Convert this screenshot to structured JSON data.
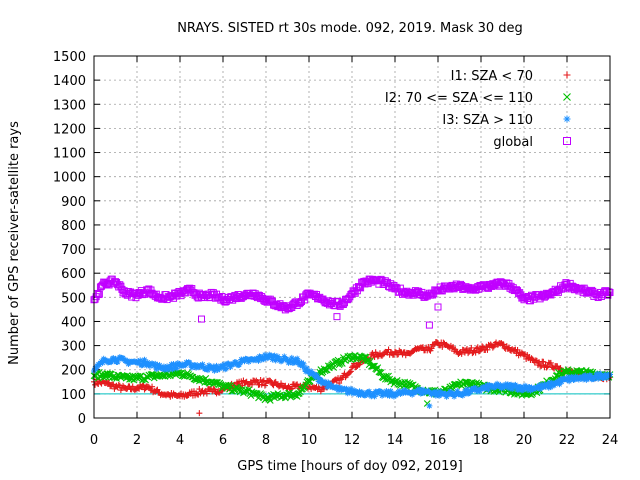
{
  "chart_data": {
    "type": "scatter",
    "title": "NRAYS. SISTED rt 30s mode. 092, 2019. Mask 30 deg",
    "xlabel": "GPS time [hours of doy 092, 2019]",
    "ylabel": "Number of GPS receiver-satellite rays",
    "xlim": [
      0,
      24
    ],
    "ylim": [
      0,
      1500
    ],
    "xticks": [
      "0",
      "2",
      "4",
      "6",
      "8",
      "10",
      "12",
      "14",
      "16",
      "18",
      "20",
      "22",
      "24"
    ],
    "yticks": [
      "0",
      "100",
      "200",
      "300",
      "400",
      "500",
      "600",
      "700",
      "800",
      "900",
      "1000",
      "1100",
      "1200",
      "1300",
      "1400",
      "1500"
    ],
    "legend_position": "top-right",
    "reference_line": {
      "y": 100,
      "color": "#00bfbf"
    },
    "series": [
      {
        "name": "I1: SZA < 70",
        "marker": "+",
        "color": "#e41a1c",
        "x": [
          0,
          0.5,
          1,
          1.5,
          2,
          2.5,
          3,
          3.5,
          4,
          4.5,
          5,
          5.5,
          6,
          6.5,
          7,
          7.5,
          8,
          8.5,
          9,
          9.5,
          10,
          10.5,
          11,
          11.5,
          12,
          12.5,
          13,
          13.5,
          14,
          14.5,
          15,
          15.5,
          16,
          16.5,
          17,
          17.5,
          18,
          18.5,
          19,
          19.5,
          20,
          20.5,
          21,
          21.5,
          22,
          22.5,
          23,
          23.5,
          24
        ],
        "y": [
          150,
          145,
          130,
          120,
          125,
          130,
          105,
          95,
          90,
          100,
          110,
          110,
          120,
          135,
          145,
          150,
          145,
          140,
          125,
          130,
          130,
          120,
          140,
          160,
          210,
          235,
          260,
          270,
          275,
          260,
          285,
          280,
          310,
          295,
          270,
          280,
          285,
          300,
          305,
          280,
          260,
          230,
          220,
          215,
          195,
          180,
          175,
          175,
          170
        ]
      },
      {
        "name": "I2: 70 <= SZA <= 110",
        "marker": "x",
        "color": "#00c000",
        "x": [
          0,
          0.5,
          1,
          1.5,
          2,
          2.5,
          3,
          3.5,
          4,
          4.5,
          5,
          5.5,
          6,
          6.5,
          7,
          7.5,
          8,
          8.5,
          9,
          9.5,
          10,
          10.5,
          11,
          11.5,
          12,
          12.5,
          13,
          13.5,
          14,
          14.5,
          15,
          15.5,
          16,
          16.5,
          17,
          17.5,
          18,
          18.5,
          19,
          19.5,
          20,
          20.5,
          21,
          21.5,
          22,
          22.5,
          23,
          23.5,
          24
        ],
        "y": [
          175,
          180,
          170,
          165,
          165,
          170,
          175,
          180,
          185,
          175,
          160,
          150,
          130,
          120,
          110,
          100,
          80,
          90,
          95,
          100,
          150,
          190,
          215,
          235,
          255,
          250,
          215,
          170,
          150,
          140,
          125,
          110,
          105,
          115,
          140,
          145,
          130,
          120,
          120,
          110,
          100,
          110,
          140,
          175,
          190,
          190,
          185,
          180,
          180
        ]
      },
      {
        "name": "I3: SZA > 110",
        "marker": "*",
        "color": "#1e90ff",
        "x": [
          0,
          0.5,
          1,
          1.5,
          2,
          2.5,
          3,
          3.5,
          4,
          4.5,
          5,
          5.5,
          6,
          6.5,
          7,
          7.5,
          8,
          8.5,
          9,
          9.5,
          10,
          10.5,
          11,
          11.5,
          12,
          12.5,
          13,
          13.5,
          14,
          14.5,
          15,
          15.5,
          16,
          16.5,
          17,
          17.5,
          18,
          18.5,
          19,
          19.5,
          20,
          20.5,
          21,
          21.5,
          22,
          22.5,
          23,
          23.5,
          24
        ],
        "y": [
          195,
          240,
          245,
          235,
          230,
          230,
          210,
          210,
          220,
          220,
          215,
          205,
          210,
          225,
          235,
          240,
          255,
          250,
          240,
          235,
          190,
          160,
          130,
          115,
          110,
          105,
          100,
          100,
          100,
          105,
          110,
          110,
          100,
          100,
          100,
          110,
          120,
          130,
          130,
          130,
          125,
          125,
          130,
          145,
          160,
          165,
          165,
          175,
          180
        ]
      },
      {
        "name": "global",
        "marker": "square",
        "color": "#c000ff",
        "x": [
          0,
          0.5,
          1,
          1.5,
          2,
          2.5,
          3,
          3.5,
          4,
          4.5,
          5,
          5.5,
          6,
          6.5,
          7,
          7.5,
          8,
          8.5,
          9,
          9.5,
          10,
          10.5,
          11,
          11.5,
          12,
          12.5,
          13,
          13.5,
          14,
          14.5,
          15,
          15.5,
          16,
          16.5,
          17,
          17.5,
          18,
          18.5,
          19,
          19.5,
          20,
          20.5,
          21,
          21.5,
          22,
          22.5,
          23,
          23.5,
          24
        ],
        "y": [
          490,
          560,
          565,
          515,
          510,
          530,
          500,
          500,
          515,
          530,
          500,
          510,
          490,
          500,
          510,
          515,
          490,
          470,
          455,
          480,
          510,
          500,
          475,
          470,
          515,
          560,
          570,
          560,
          535,
          520,
          520,
          505,
          530,
          540,
          545,
          530,
          545,
          545,
          560,
          540,
          490,
          500,
          505,
          525,
          555,
          535,
          520,
          510,
          520
        ]
      }
    ],
    "outliers": [
      {
        "series": "I1: SZA < 70",
        "x": 4.9,
        "y": 20
      },
      {
        "series": "I2: 70 <= SZA <= 110",
        "x": 15.5,
        "y": 60
      },
      {
        "series": "I3: SZA > 110",
        "x": 15.6,
        "y": 50
      },
      {
        "series": "global",
        "x": 5.0,
        "y": 410
      },
      {
        "series": "global",
        "x": 15.6,
        "y": 385
      },
      {
        "series": "global",
        "x": 16.0,
        "y": 460
      },
      {
        "series": "global",
        "x": 11.3,
        "y": 420
      }
    ]
  }
}
